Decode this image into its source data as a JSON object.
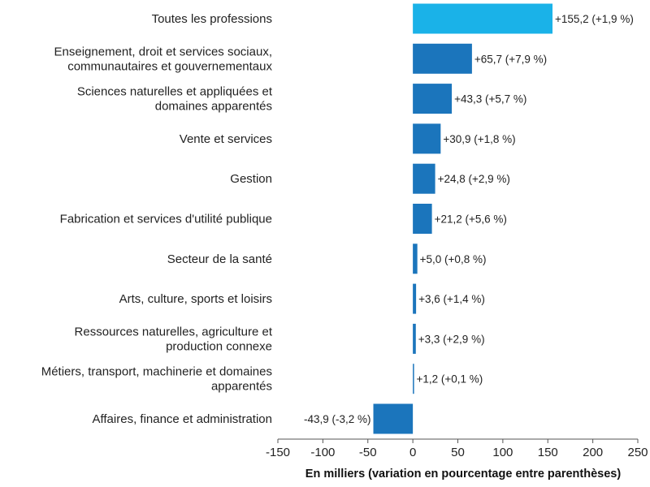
{
  "chart_data": {
    "type": "bar",
    "orientation": "horizontal",
    "categories": [
      [
        "Toutes les professions"
      ],
      [
        "Enseignement, droit et services sociaux,",
        "communautaires et gouvernementaux"
      ],
      [
        "Sciences naturelles et appliquées et",
        "domaines apparentés"
      ],
      [
        "Vente et services"
      ],
      [
        "Gestion"
      ],
      [
        "Fabrication et services d'utilité publique"
      ],
      [
        "Secteur de la santé"
      ],
      [
        "Arts, culture, sports et loisirs"
      ],
      [
        "Ressources naturelles, agriculture et",
        "production connexe"
      ],
      [
        "Métiers, transport, machinerie et domaines",
        "apparentés"
      ],
      [
        "Affaires, finance et administration"
      ]
    ],
    "values": [
      155.2,
      65.7,
      43.3,
      30.9,
      24.8,
      21.2,
      5.0,
      3.6,
      3.3,
      1.2,
      -43.9
    ],
    "data_labels": [
      "+155,2 (+1,9 %)",
      "+65,7 (+7,9 %)",
      "+43,3 (+5,7 %)",
      "+30,9 (+1,8 %)",
      "+24,8 (+2,9 %)",
      "+21,2 (+5,6 %)",
      "+5,0 (+0,8 %)",
      "+3,6 (+1,4 %)",
      "+3,3 (+2,9 %)",
      "+1,2 (+0,1 %)",
      "-43,9 (-3,2 %)"
    ],
    "highlight_index": 0,
    "xlim": [
      -150,
      250
    ],
    "xticks": [
      -150,
      -100,
      -50,
      0,
      50,
      100,
      150,
      200,
      250
    ],
    "xlabel": "En milliers (variation en pourcentage entre parenthèses)",
    "ylabel": "",
    "title": "",
    "grid": false,
    "colors": {
      "highlight": "#1ab2e8",
      "bar": "#1b75bc"
    }
  }
}
